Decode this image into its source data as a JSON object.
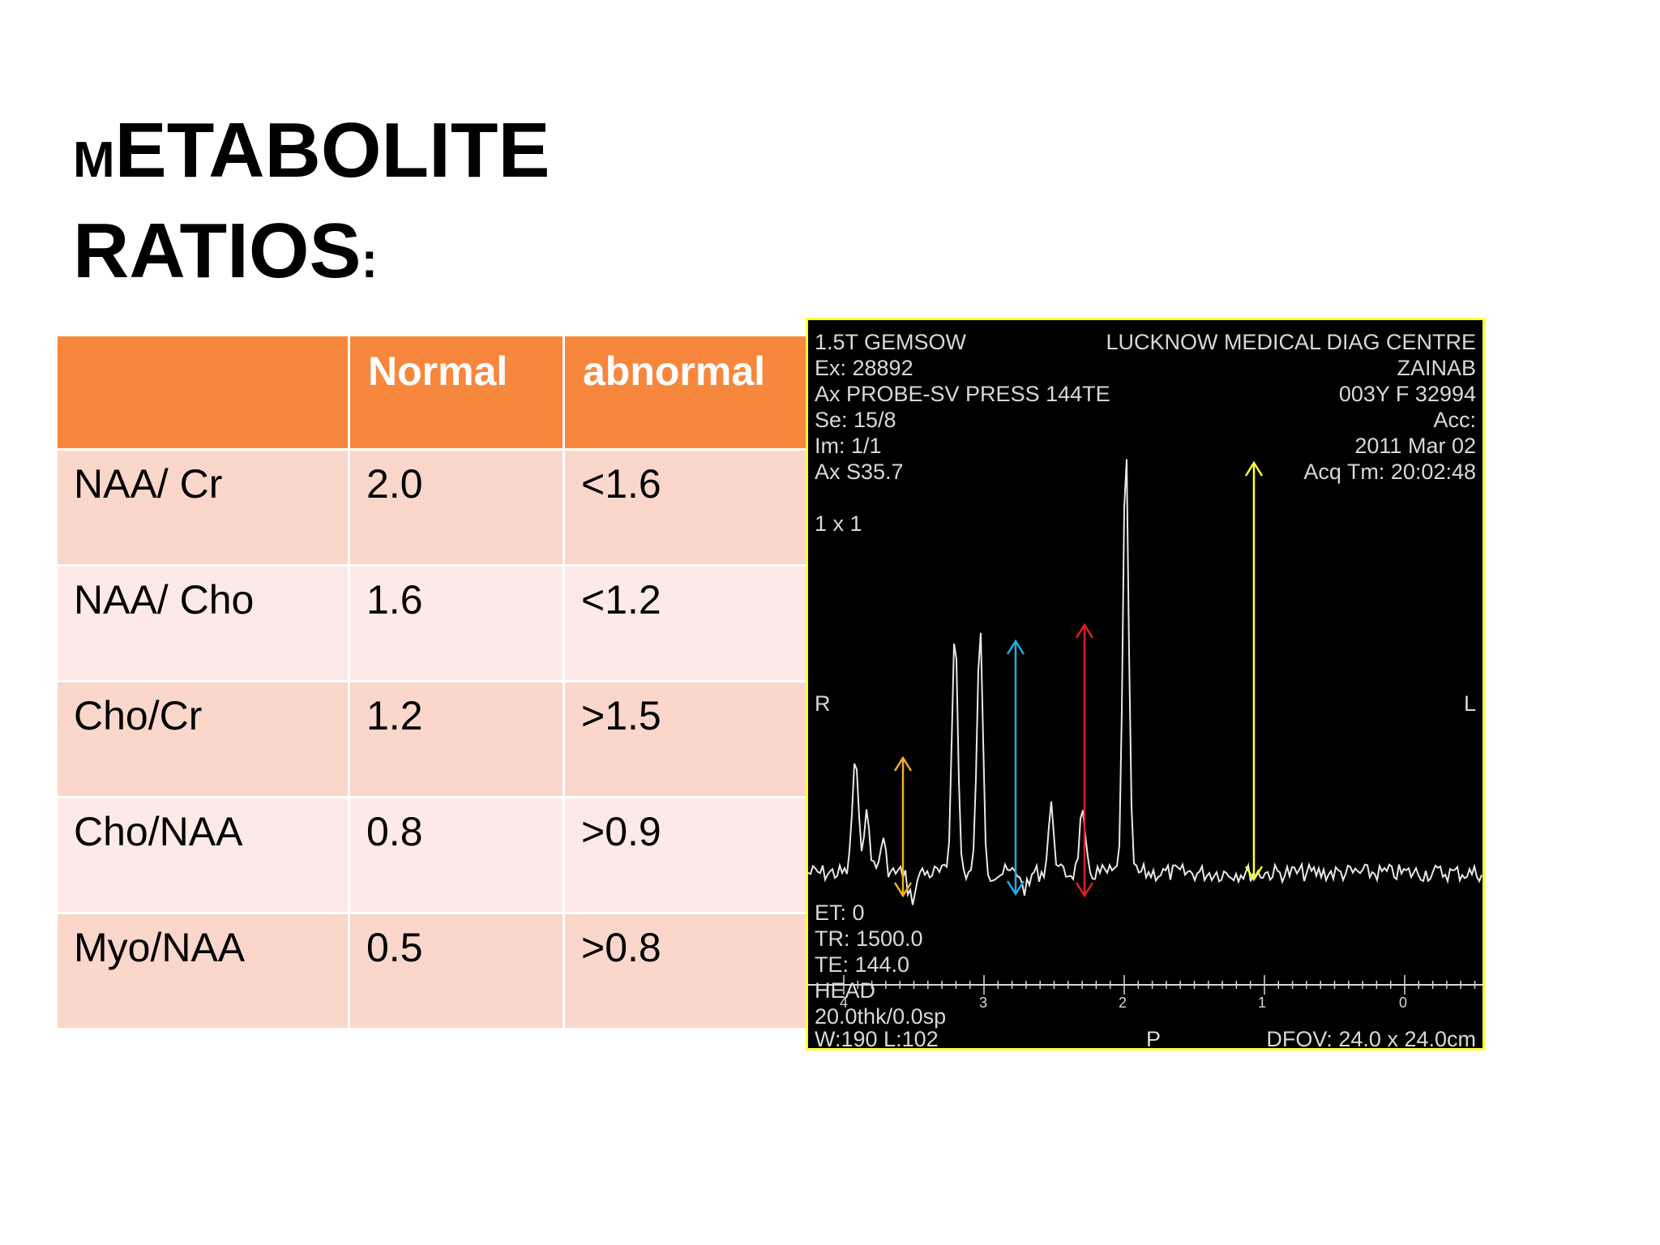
{
  "slide": {
    "title_line1_first": "M",
    "title_line1_rest": "ETABOLITE",
    "title_line2_main": "RATIOS",
    "title_line2_colon": ":"
  },
  "table": {
    "headers": [
      "",
      "Normal",
      "abnormal"
    ],
    "rows": [
      {
        "label": "NAA/ Cr",
        "normal": "2.0",
        "abnormal": "<1.6"
      },
      {
        "label": "NAA/ Cho",
        "normal": "1.6",
        "abnormal": "<1.2"
      },
      {
        "label": "Cho/Cr",
        "normal": "1.2",
        "abnormal": ">1.5"
      },
      {
        "label": "Cho/NAA",
        "normal": "0.8",
        "abnormal": ">0.9"
      },
      {
        "label": "Myo/NAA",
        "normal": "0.5",
        "abnormal": ">0.8"
      }
    ]
  },
  "spectrum": {
    "top_left": [
      "1.5T GEMSOW",
      "Ex: 28892",
      "Ax PROBE-SV PRESS 144TE",
      "Se: 15/8",
      "Im: 1/1",
      "Ax S35.7"
    ],
    "grid_label": "1 x 1",
    "top_right": [
      "LUCKNOW MEDICAL DIAG CENTRE",
      "ZAINAB",
      "003Y  F  32994",
      "Acc:",
      "2011 Mar 02",
      "Acq Tm: 20:02:48"
    ],
    "left_marker": "R",
    "right_marker": "L",
    "bottom_left": [
      "ET: 0",
      "TR: 1500.0",
      "TE: 144.0",
      "HEAD",
      "20.0thk/0.0sp",
      "W:190  L:102"
    ],
    "bottom_center": "P",
    "bottom_right": "DFOV: 24.0 x 24.0cm",
    "ppm_ticks": [
      "4",
      "3",
      "2",
      "1",
      "0"
    ],
    "arrow_colors": {
      "orange": "#f0b020",
      "blue": "#29a8e0",
      "red": "#e02020",
      "yellow": "#ffff33"
    }
  }
}
